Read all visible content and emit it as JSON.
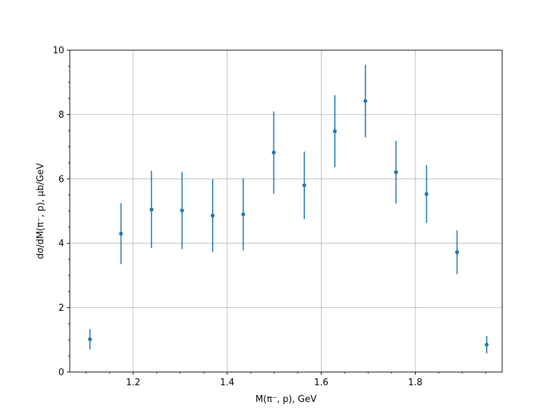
{
  "chart_data": {
    "type": "scatter",
    "xlabel": "M(π⁻, p), GeV",
    "ylabel": "dσ/dM(π⁻, p), μb/GeV",
    "xlim": [
      1.065,
      1.985
    ],
    "ylim": [
      0,
      10
    ],
    "x_ticks": [
      "1.2",
      "1.4",
      "1.6",
      "1.8"
    ],
    "y_ticks": [
      "0",
      "2",
      "4",
      "6",
      "8",
      "10"
    ],
    "grid": true,
    "color": "#1f77b4",
    "points": [
      {
        "x": 1.108,
        "y": 1.02,
        "err": 0.32
      },
      {
        "x": 1.174,
        "y": 4.3,
        "err": 0.95
      },
      {
        "x": 1.239,
        "y": 5.05,
        "err": 1.2
      },
      {
        "x": 1.304,
        "y": 5.02,
        "err": 1.2
      },
      {
        "x": 1.369,
        "y": 4.86,
        "err": 1.13
      },
      {
        "x": 1.434,
        "y": 4.9,
        "err": 1.12
      },
      {
        "x": 1.499,
        "y": 6.82,
        "err": 1.28
      },
      {
        "x": 1.564,
        "y": 5.8,
        "err": 1.05
      },
      {
        "x": 1.629,
        "y": 7.48,
        "err": 1.12
      },
      {
        "x": 1.694,
        "y": 8.42,
        "err": 1.13
      },
      {
        "x": 1.759,
        "y": 6.21,
        "err": 0.97
      },
      {
        "x": 1.824,
        "y": 5.53,
        "err": 0.9
      },
      {
        "x": 1.889,
        "y": 3.72,
        "err": 0.68
      },
      {
        "x": 1.952,
        "y": 0.85,
        "err": 0.27
      }
    ]
  }
}
